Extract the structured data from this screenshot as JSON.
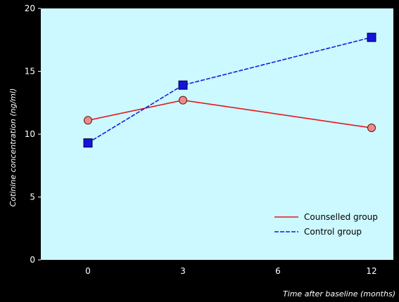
{
  "chart_data": {
    "type": "line",
    "ylabel": "Cotinine concentration (ng/ml)",
    "xlabel": "Time after baseline (months)",
    "categories": [
      "0",
      "3",
      "6",
      "12"
    ],
    "y_ticks": [
      "0",
      "5",
      "10",
      "15",
      "20"
    ],
    "ylim": [
      0,
      20
    ],
    "grid": false,
    "legend": "bottom-right",
    "series": [
      {
        "name": "Counselled group",
        "x": [
          "0",
          "3",
          "12"
        ],
        "values": [
          11.1,
          12.7,
          10.5
        ],
        "color": "#e4181d",
        "marker": "circle",
        "marker_fill": "#f08a8a",
        "dash": false
      },
      {
        "name": "Control group",
        "x": [
          "0",
          "3",
          "12"
        ],
        "values": [
          9.3,
          13.9,
          17.7
        ],
        "color": "#1a1ae6",
        "marker": "square",
        "marker_fill": "#1414d8",
        "dash": true
      }
    ],
    "colors": {
      "plot_bg": "#ccf8ff",
      "page_bg": "#000000",
      "text": "#ffffff"
    }
  }
}
